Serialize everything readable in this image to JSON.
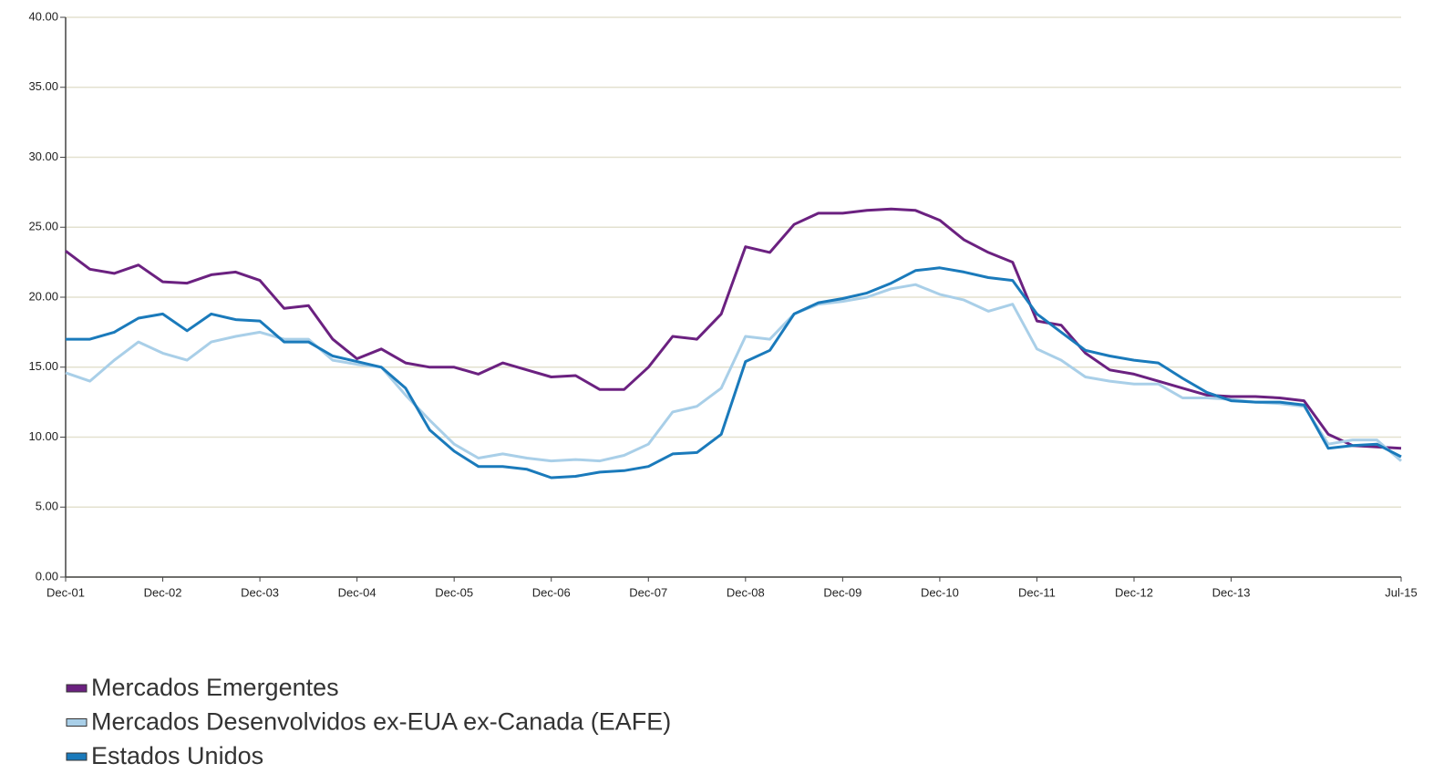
{
  "chart_data": {
    "type": "line",
    "categories": [
      "Dec-01",
      null,
      null,
      null,
      "Dec-02",
      null,
      null,
      null,
      "Dec-03",
      null,
      null,
      null,
      "Dec-04",
      null,
      null,
      null,
      "Dec-05",
      null,
      null,
      null,
      "Dec-06",
      null,
      null,
      null,
      "Dec-07",
      null,
      null,
      null,
      "Dec-08",
      null,
      null,
      null,
      "Dec-09",
      null,
      null,
      null,
      "Dec-10",
      null,
      null,
      null,
      "Dec-11",
      null,
      null,
      null,
      "Dec-12",
      null,
      null,
      null,
      "Dec-13",
      null,
      null,
      null,
      null,
      null,
      null,
      "Jul-15"
    ],
    "series": [
      {
        "name": "Mercados Emergentes",
        "color": "#6b2180",
        "values": [
          23.3,
          22.0,
          21.7,
          22.3,
          21.1,
          21.0,
          21.6,
          21.8,
          21.2,
          19.2,
          19.4,
          17.0,
          15.6,
          16.3,
          15.3,
          15.0,
          15.0,
          14.5,
          15.3,
          14.8,
          14.3,
          14.4,
          13.4,
          13.4,
          15.0,
          17.2,
          17.0,
          18.8,
          23.6,
          23.2,
          25.2,
          26.0,
          26.0,
          26.2,
          26.3,
          26.2,
          25.5,
          24.1,
          23.2,
          22.5,
          18.3,
          18.0,
          16.0,
          14.8,
          14.5,
          14.0,
          13.5,
          13.0,
          12.9,
          12.9,
          12.8,
          12.6,
          10.2,
          9.4,
          9.3,
          9.2
        ]
      },
      {
        "name": "Mercados Desenvolvidos ex-EUA ex-Canada (EAFE)",
        "color": "#a9cfe8",
        "values": [
          14.6,
          14.0,
          15.5,
          16.8,
          16.0,
          15.5,
          16.8,
          17.2,
          17.5,
          17.0,
          17.0,
          15.5,
          15.2,
          15.0,
          13.0,
          11.2,
          9.5,
          8.5,
          8.8,
          8.5,
          8.3,
          8.4,
          8.3,
          8.7,
          9.5,
          11.8,
          12.2,
          13.5,
          17.2,
          17.0,
          18.8,
          19.5,
          19.7,
          20.0,
          20.6,
          20.9,
          20.2,
          19.8,
          19.0,
          19.5,
          16.3,
          15.5,
          14.3,
          14.0,
          13.8,
          13.8,
          12.8,
          12.8,
          12.7,
          12.5,
          12.4,
          12.2,
          9.5,
          9.8,
          9.8,
          8.3
        ]
      },
      {
        "name": "Estados Unidos",
        "color": "#1a7abb",
        "values": [
          17.0,
          17.0,
          17.5,
          18.5,
          18.8,
          17.6,
          18.8,
          18.4,
          18.3,
          16.8,
          16.8,
          15.8,
          15.4,
          15.0,
          13.5,
          10.5,
          9.0,
          7.9,
          7.9,
          7.7,
          7.1,
          7.2,
          7.5,
          7.6,
          7.9,
          8.8,
          8.9,
          10.2,
          15.4,
          16.2,
          18.8,
          19.6,
          19.9,
          20.3,
          21.0,
          21.9,
          22.1,
          21.8,
          21.4,
          21.2,
          18.8,
          17.5,
          16.2,
          15.8,
          15.5,
          15.3,
          14.2,
          13.2,
          12.6,
          12.5,
          12.5,
          12.3,
          9.2,
          9.4,
          9.5,
          8.6
        ]
      }
    ],
    "ylim": [
      0,
      40
    ],
    "yticks": [
      {
        "value": 0,
        "label": "0.00"
      },
      {
        "value": 5,
        "label": "5.00"
      },
      {
        "value": 10,
        "label": "10.00"
      },
      {
        "value": 15,
        "label": "15.00"
      },
      {
        "value": 20,
        "label": "20.00"
      },
      {
        "value": 25,
        "label": "25.00"
      },
      {
        "value": 30,
        "label": "30.00"
      },
      {
        "value": 35,
        "label": "35.00"
      },
      {
        "value": 40,
        "label": "40.00"
      }
    ],
    "grid": true
  }
}
